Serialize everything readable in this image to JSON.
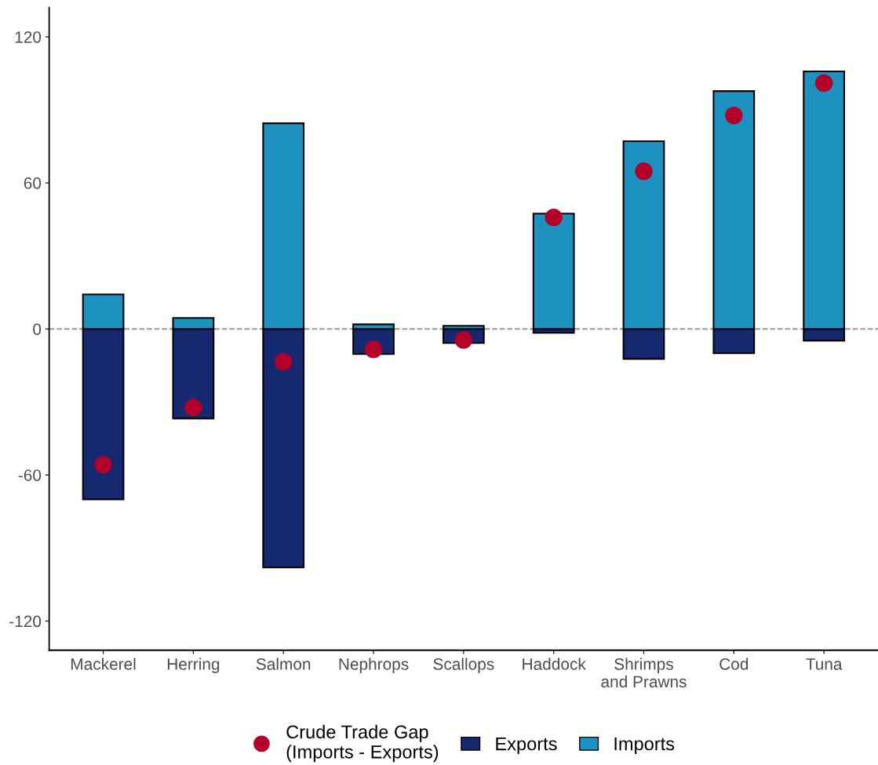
{
  "chart_data": {
    "type": "bar",
    "stacked": true,
    "categories": [
      "Mackerel",
      "Herring",
      "Salmon",
      "Nephrops",
      "Scallops",
      "Haddock",
      "Shrimps\nand Prawns",
      "Cod",
      "Tuna"
    ],
    "series": [
      {
        "name": "Exports",
        "color": "#162870",
        "values": [
          -70,
          -36.8,
          -98,
          -10.3,
          -5.8,
          -1.6,
          -12.3,
          -10,
          -4.8
        ]
      },
      {
        "name": "Imports",
        "color": "#1d91c0",
        "values": [
          14.2,
          4.5,
          84.5,
          1.9,
          1.3,
          47.4,
          77.1,
          97.7,
          105.8
        ]
      },
      {
        "name": "Crude Trade Gap\n(Imports - Exports)",
        "type": "scatter",
        "color": "#b2002a",
        "marker": "circle",
        "x": [
          "Mackerel",
          "Herring",
          "Salmon",
          "Nephrops",
          "Scallops",
          "Haddock",
          "Shrimps\nand Prawns",
          "Cod",
          "Tuna"
        ],
        "values": [
          -55.8,
          -32.3,
          -13.5,
          -8.4,
          -4.5,
          45.8,
          64.8,
          87.7,
          101
        ]
      }
    ],
    "ylim": [
      -132,
      132
    ],
    "yticks": [
      -120,
      -60,
      0,
      60,
      120
    ],
    "ref_lines": [
      {
        "axis": "y",
        "value": 0,
        "color": "#999999",
        "line_style": "dashed"
      }
    ],
    "grid": false,
    "legend": "bottom"
  }
}
